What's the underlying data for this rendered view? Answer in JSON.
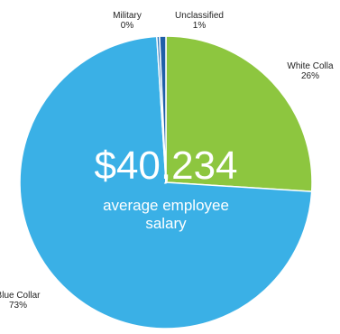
{
  "chart_data": {
    "type": "pie",
    "center_text": {
      "value": "$40,234",
      "caption_line1": "average employee",
      "caption_line2": "salary"
    },
    "slices": [
      {
        "name": "White Colla",
        "pct_label": "26%",
        "value": 26,
        "color": "#8dc63f"
      },
      {
        "name": "Blue Collar",
        "pct_label": "73%",
        "value": 73,
        "color": "#3ab0e6"
      },
      {
        "name": "Military",
        "pct_label": "0%",
        "value": 0.3,
        "color": "#2f79be"
      },
      {
        "name": "Unclassified",
        "pct_label": "1%",
        "value": 0.7,
        "color": "#1f5fa8"
      }
    ]
  }
}
